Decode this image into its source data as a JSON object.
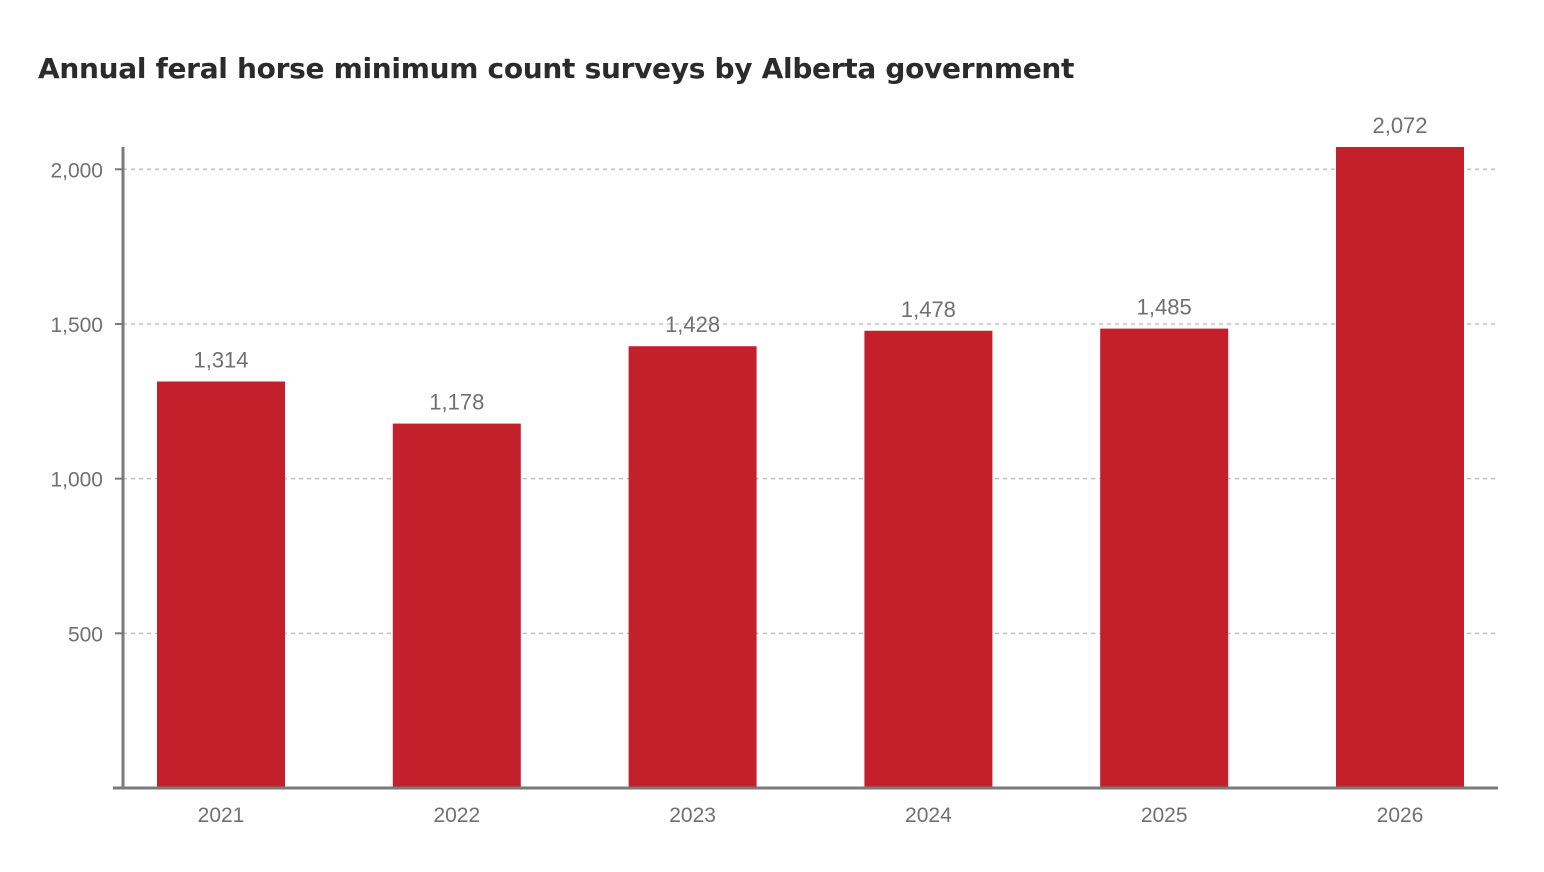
{
  "chart_data": {
    "type": "bar",
    "title": "Annual feral horse minimum count surveys by Alberta government",
    "categories": [
      "2021",
      "2022",
      "2023",
      "2024",
      "2025",
      "2026"
    ],
    "values": [
      1314,
      1178,
      1428,
      1478,
      1485,
      2072
    ],
    "data_labels": [
      "1,314",
      "1,178",
      "1,428",
      "1,478",
      "1,485",
      "2,072"
    ],
    "y_ticks": [
      500,
      1000,
      1500,
      2000
    ],
    "y_tick_labels": [
      "500",
      "1,000",
      "1,500",
      "2,000"
    ],
    "ylim": [
      0,
      2072
    ],
    "xlabel": "",
    "ylabel": "",
    "grid": true,
    "legend": "none",
    "colors": {
      "bar": "#c4202b",
      "axis": "#7a7a7a",
      "grid": "#c2c2c2",
      "text": "#707070",
      "title": "#2b2b2b"
    }
  }
}
